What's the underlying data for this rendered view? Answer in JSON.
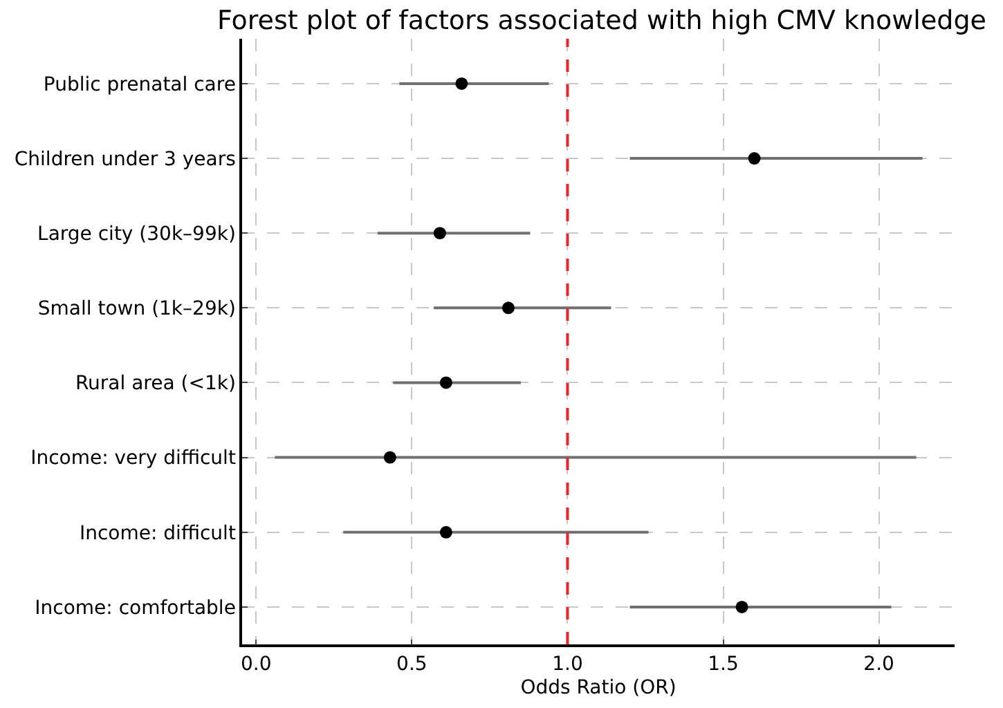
{
  "chart_data": {
    "type": "scatter",
    "title": "Forest plot of factors associated with high CMV knowledge",
    "xlabel": "Odds Ratio (OR)",
    "orientation": "horizontal",
    "categories": [
      "Public prenatal care",
      "Children under 3 years",
      "Large city (30k–99k)",
      "Small town (1k–29k)",
      "Rural area (<1k)",
      "Income: very difficult",
      "Income: difficult",
      "Income: comfortable"
    ],
    "color": "#000000",
    "values": [
      0.66,
      1.6,
      0.59,
      0.81,
      0.61,
      0.43,
      0.61,
      1.56
    ],
    "errors": [
      [
        0.46,
        0.94
      ],
      [
        1.2,
        2.14
      ],
      [
        0.39,
        0.88
      ],
      [
        0.57,
        1.14
      ],
      [
        0.44,
        0.85
      ],
      [
        0.06,
        2.12
      ],
      [
        0.28,
        1.26
      ],
      [
        1.2,
        2.04
      ]
    ],
    "xlim": [
      -0.045,
      2.243
    ],
    "xticks": [
      {
        "value": 0,
        "label": "0.0"
      },
      0.5,
      {
        "value": 1,
        "label": "1.0"
      },
      1.5,
      {
        "value": 2,
        "label": "2.0"
      }
    ],
    "ref_lines": [
      {
        "axis": "x",
        "value": 1,
        "color": "#e8262a",
        "line_style": "dashed"
      }
    ],
    "grid": true,
    "marker": "circle"
  }
}
